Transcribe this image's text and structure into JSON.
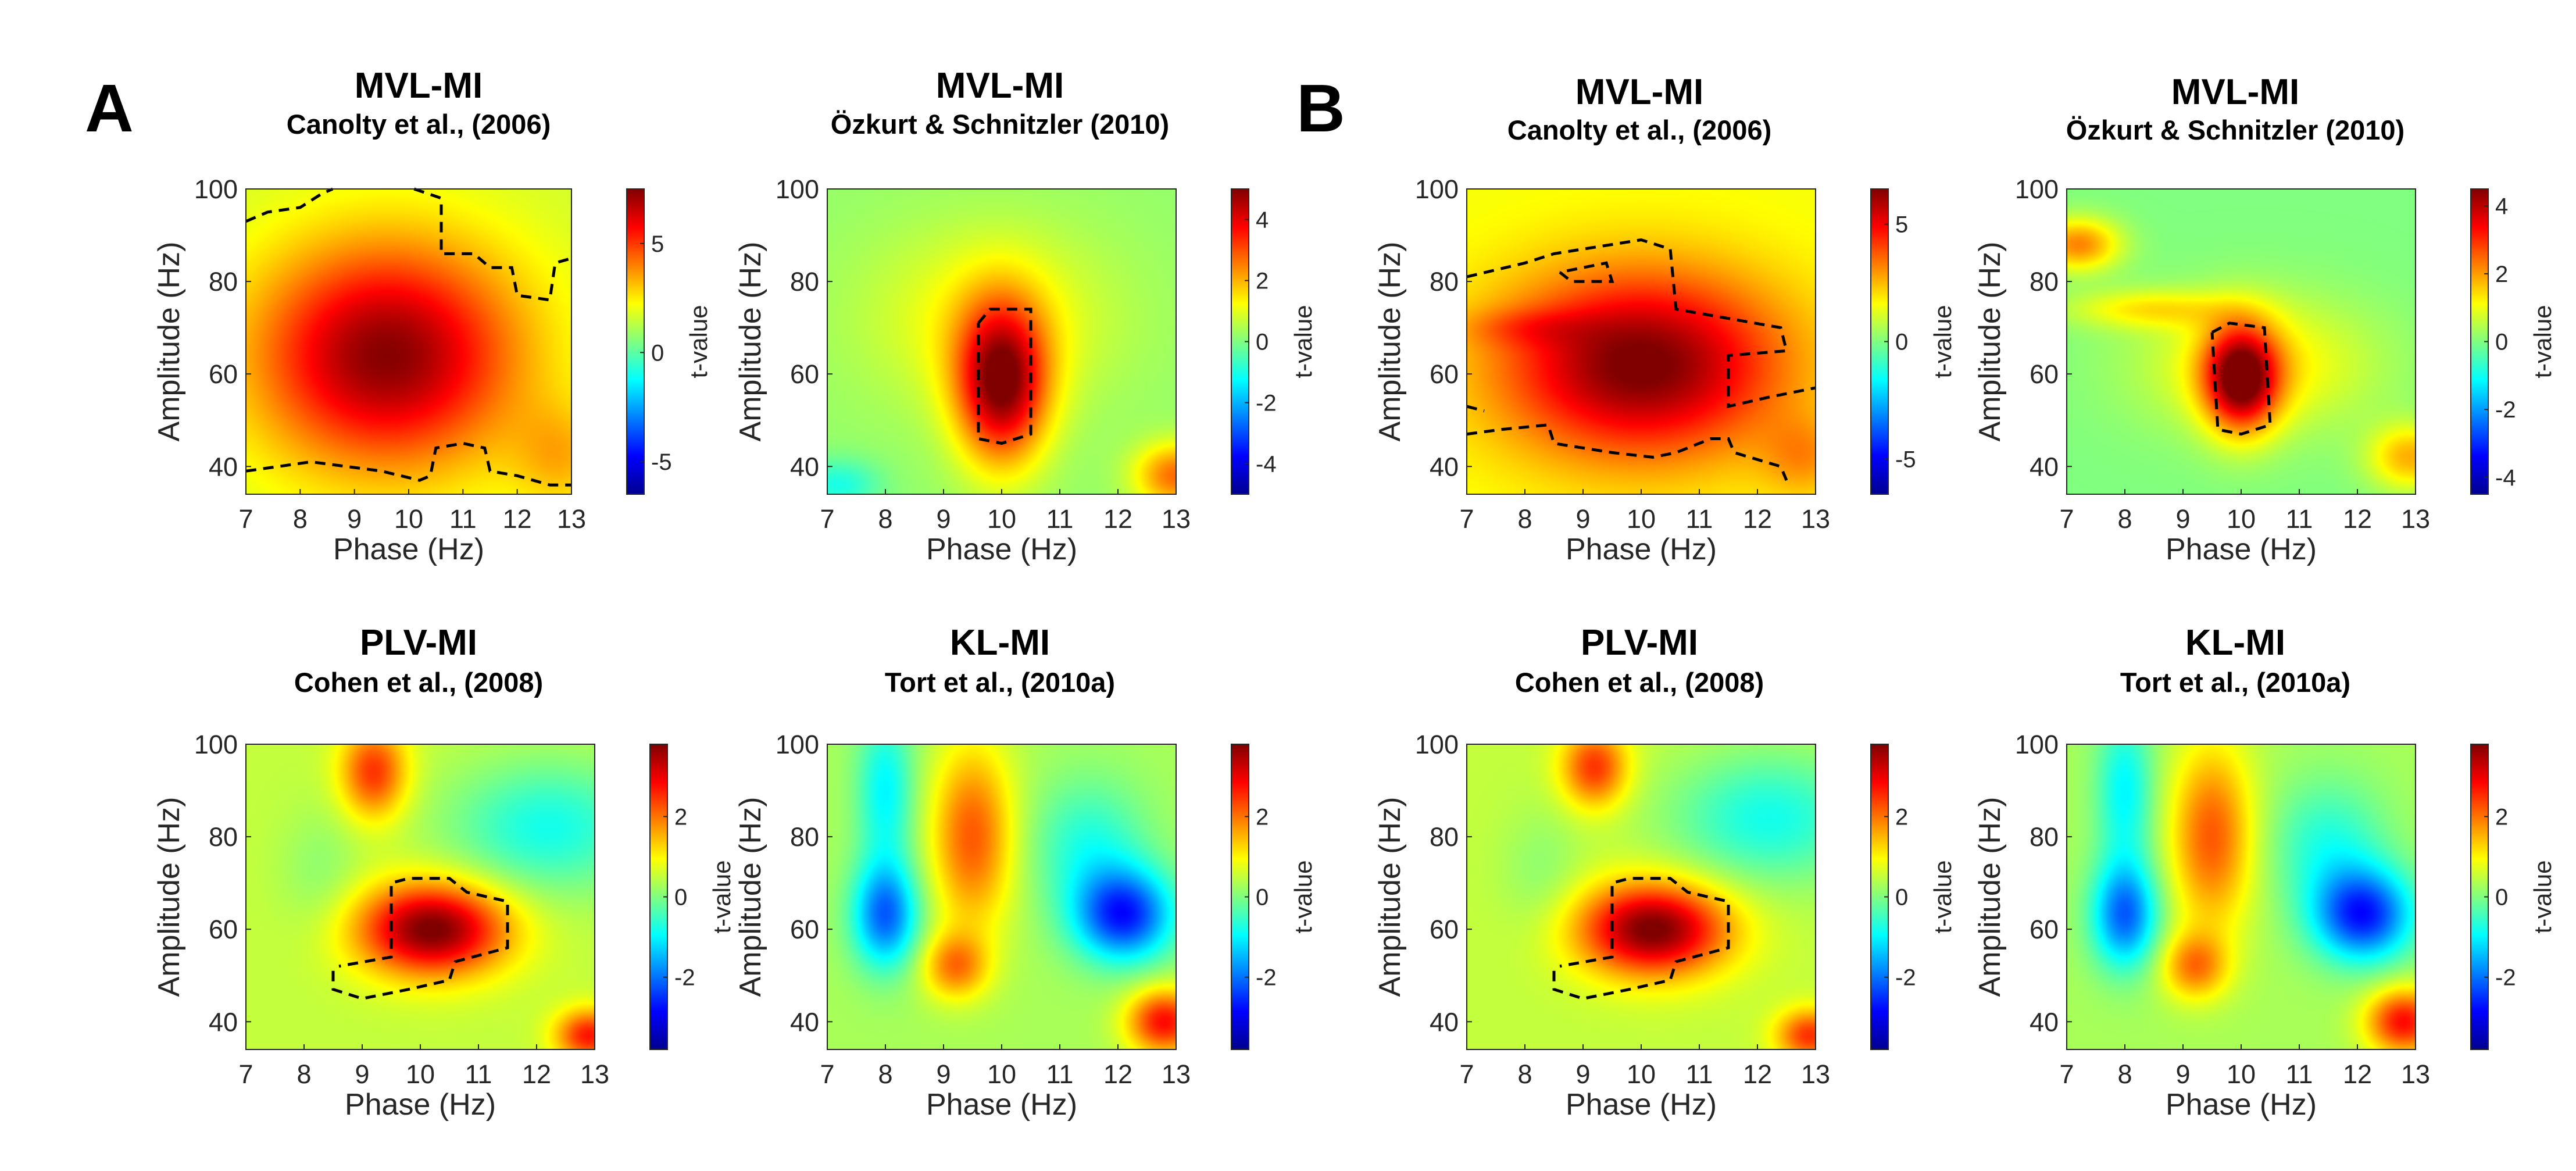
{
  "figure": {
    "panels": [
      {
        "letter": "A"
      },
      {
        "letter": "B"
      }
    ]
  },
  "colors": {
    "colormap": [
      "#00008f",
      "#0000ff",
      "#0080ff",
      "#00ffff",
      "#80ff80",
      "#ffff00",
      "#ff8000",
      "#ff0000",
      "#800000"
    ],
    "significance_contour": "#000000"
  },
  "chart_data": [
    {
      "type": "heatmap",
      "panel": "A",
      "title": "MVL-MI",
      "subtitle": "Canolty et al., (2006)",
      "xlabel": "Phase (Hz)",
      "ylabel": "Amplitude (Hz)",
      "xlim": [
        7,
        13
      ],
      "ylim": [
        34,
        100
      ],
      "x_ticks": [
        7,
        8,
        9,
        10,
        11,
        12,
        13
      ],
      "y_ticks": [
        40,
        60,
        80,
        100
      ],
      "colorbar": {
        "label": "t-value",
        "range": [
          -6.5,
          7.5
        ],
        "ticks": [
          -5,
          0,
          5
        ]
      },
      "background": 1.6,
      "blobs": [
        {
          "x": 9.6,
          "y": 64,
          "sx": 1.7,
          "sy": 17,
          "amp": 5.8
        },
        {
          "x": 12.8,
          "y": 42,
          "sx": 0.6,
          "sy": 8,
          "amp": 1.5
        }
      ],
      "contours": [
        [
          [
            7,
            93
          ],
          [
            7.4,
            95
          ],
          [
            8,
            96
          ],
          [
            8.4,
            99
          ],
          [
            8.6,
            100
          ]
        ],
        [
          [
            10.1,
            100
          ],
          [
            10.6,
            98
          ],
          [
            10.6,
            86
          ],
          [
            11.2,
            86
          ],
          [
            11.5,
            83
          ],
          [
            11.9,
            83
          ],
          [
            12,
            77
          ],
          [
            12.6,
            76
          ],
          [
            12.7,
            84
          ],
          [
            13,
            85
          ]
        ],
        [
          [
            7,
            39
          ],
          [
            7.6,
            40
          ],
          [
            8.2,
            41
          ],
          [
            9.5,
            39
          ],
          [
            10.2,
            37
          ],
          [
            10.4,
            38
          ],
          [
            10.5,
            44
          ],
          [
            11,
            45
          ],
          [
            11.4,
            44
          ],
          [
            11.5,
            39
          ],
          [
            12,
            38
          ],
          [
            12.6,
            36
          ],
          [
            13,
            36
          ]
        ]
      ]
    },
    {
      "type": "heatmap",
      "panel": "A",
      "title": "MVL-MI",
      "subtitle": "Özkurt & Schnitzler (2010)",
      "xlabel": "Phase (Hz)",
      "ylabel": "Amplitude (Hz)",
      "xlim": [
        7,
        13
      ],
      "ylim": [
        34,
        100
      ],
      "x_ticks": [
        7,
        8,
        9,
        10,
        11,
        12,
        13
      ],
      "y_ticks": [
        40,
        60,
        80,
        100
      ],
      "colorbar": {
        "label": "t-value",
        "range": [
          -5,
          5
        ],
        "ticks": [
          -4,
          -2,
          0,
          2,
          4
        ]
      },
      "background": 0.2,
      "blobs": [
        {
          "x": 10,
          "y": 58,
          "sx": 0.55,
          "sy": 12,
          "amp": 4.6
        },
        {
          "x": 9.8,
          "y": 72,
          "sx": 1.5,
          "sy": 14,
          "amp": 1.1
        },
        {
          "x": 13,
          "y": 38,
          "sx": 0.5,
          "sy": 5,
          "amp": 2.5
        },
        {
          "x": 7.2,
          "y": 36,
          "sx": 0.5,
          "sy": 4,
          "amp": -1.2
        }
      ],
      "contours": [
        [
          [
            9.6,
            71
          ],
          [
            9.8,
            74
          ],
          [
            10.5,
            74
          ],
          [
            10.5,
            47
          ],
          [
            10,
            45
          ],
          [
            9.6,
            46
          ],
          [
            9.6,
            71
          ]
        ]
      ]
    },
    {
      "type": "heatmap",
      "panel": "B",
      "title": "MVL-MI",
      "subtitle": "Canolty et al., (2006)",
      "xlabel": "Phase (Hz)",
      "ylabel": "Amplitude (Hz)",
      "xlim": [
        7,
        13
      ],
      "ylim": [
        34,
        100
      ],
      "x_ticks": [
        7,
        8,
        9,
        10,
        11,
        12,
        13
      ],
      "y_ticks": [
        40,
        60,
        80,
        100
      ],
      "colorbar": {
        "label": "t-value",
        "range": [
          -6.5,
          6.5
        ],
        "ticks": [
          -5,
          0,
          5
        ]
      },
      "background": 1.5,
      "blobs": [
        {
          "x": 10,
          "y": 62,
          "sx": 1.7,
          "sy": 14,
          "amp": 5.2
        },
        {
          "x": 8,
          "y": 70,
          "sx": 0.8,
          "sy": 3,
          "amp": 1.0
        },
        {
          "x": 12.8,
          "y": 42,
          "sx": 0.5,
          "sy": 6,
          "amp": 1.3
        }
      ],
      "contours": [
        [
          [
            7,
            81
          ],
          [
            8,
            84
          ],
          [
            8.5,
            86
          ],
          [
            9,
            87
          ],
          [
            9.5,
            88
          ],
          [
            10,
            89
          ],
          [
            10.5,
            87
          ],
          [
            10.6,
            74
          ],
          [
            11.5,
            72
          ],
          [
            12.4,
            70
          ],
          [
            12.5,
            65
          ],
          [
            11.5,
            64
          ],
          [
            11.5,
            53
          ],
          [
            12.2,
            55
          ],
          [
            13,
            57
          ]
        ],
        [
          [
            8.6,
            82
          ],
          [
            8.8,
            80
          ],
          [
            9.5,
            80
          ],
          [
            9.4,
            84
          ],
          [
            8.6,
            82
          ]
        ],
        [
          [
            7,
            47
          ],
          [
            7.6,
            48
          ],
          [
            8.4,
            49
          ],
          [
            8.5,
            45
          ],
          [
            9.5,
            43
          ],
          [
            10.2,
            42
          ],
          [
            10.6,
            43
          ],
          [
            11.2,
            46
          ],
          [
            11.5,
            46
          ],
          [
            11.6,
            43
          ],
          [
            12.4,
            40
          ],
          [
            12.5,
            37
          ]
        ],
        [
          [
            7,
            53
          ],
          [
            7.3,
            52
          ]
        ]
      ]
    },
    {
      "type": "heatmap",
      "panel": "B",
      "title": "MVL-MI",
      "subtitle": "Özkurt & Schnitzler (2010)",
      "xlabel": "Phase (Hz)",
      "ylabel": "Amplitude (Hz)",
      "xlim": [
        7,
        13
      ],
      "ylim": [
        34,
        100
      ],
      "x_ticks": [
        7,
        8,
        9,
        10,
        11,
        12,
        13
      ],
      "y_ticks": [
        40,
        60,
        80,
        100
      ],
      "colorbar": {
        "label": "t-value",
        "range": [
          -4.5,
          4.5
        ],
        "ticks": [
          -4,
          -2,
          0,
          2,
          4
        ]
      },
      "background": 0.0,
      "blobs": [
        {
          "x": 10,
          "y": 59,
          "sx": 0.45,
          "sy": 8,
          "amp": 4.2
        },
        {
          "x": 10.3,
          "y": 62,
          "sx": 1.4,
          "sy": 10,
          "amp": 1.3
        },
        {
          "x": 7.2,
          "y": 88,
          "sx": 0.5,
          "sy": 4,
          "amp": 2.2
        },
        {
          "x": 8.4,
          "y": 74,
          "sx": 1.0,
          "sy": 3,
          "amp": 1.2
        },
        {
          "x": 12.9,
          "y": 42,
          "sx": 0.5,
          "sy": 5,
          "amp": 1.8
        }
      ],
      "contours": [
        [
          [
            9.5,
            69
          ],
          [
            9.8,
            71
          ],
          [
            10.4,
            70
          ],
          [
            10.5,
            49
          ],
          [
            10,
            47
          ],
          [
            9.6,
            48
          ],
          [
            9.5,
            69
          ]
        ]
      ]
    },
    {
      "type": "heatmap",
      "panel": "A",
      "title": "PLV-MI",
      "subtitle": "Cohen et al., (2008)",
      "xlabel": "Phase (Hz)",
      "ylabel": "Amplitude (Hz)",
      "xlim": [
        7,
        13
      ],
      "ylim": [
        34,
        100
      ],
      "x_ticks": [
        7,
        8,
        9,
        10,
        11,
        12,
        13
      ],
      "y_ticks": [
        40,
        60,
        80,
        100
      ],
      "colorbar": {
        "label": "t-value",
        "range": [
          -3.8,
          3.8
        ],
        "ticks": [
          -2,
          0,
          2
        ]
      },
      "background": 0.5,
      "blobs": [
        {
          "x": 10.2,
          "y": 60,
          "sx": 0.9,
          "sy": 7,
          "amp": 3.4
        },
        {
          "x": 9.2,
          "y": 94,
          "sx": 0.4,
          "sy": 7,
          "amp": 2.0
        },
        {
          "x": 12.2,
          "y": 82,
          "sx": 1.2,
          "sy": 10,
          "amp": -1.3
        },
        {
          "x": 12.9,
          "y": 37,
          "sx": 0.4,
          "sy": 4,
          "amp": 2.2
        },
        {
          "x": 8.3,
          "y": 72,
          "sx": 0.5,
          "sy": 10,
          "amp": -0.4
        }
      ],
      "contours": [
        [
          [
            8.5,
            51
          ],
          [
            8.5,
            47
          ],
          [
            9,
            45
          ],
          [
            9.8,
            47
          ],
          [
            10.5,
            49
          ],
          [
            10.6,
            53
          ],
          [
            11.5,
            56
          ],
          [
            11.5,
            66
          ],
          [
            10.8,
            68
          ],
          [
            10.5,
            71
          ],
          [
            9.8,
            71
          ],
          [
            9.5,
            70
          ],
          [
            9.5,
            54
          ],
          [
            8.6,
            52
          ]
        ]
      ]
    },
    {
      "type": "heatmap",
      "panel": "A",
      "title": "KL-MI",
      "subtitle": "Tort et al., (2010a)",
      "xlabel": "Phase (Hz)",
      "ylabel": "Amplitude (Hz)",
      "xlim": [
        7,
        13
      ],
      "ylim": [
        34,
        100
      ],
      "x_ticks": [
        7,
        8,
        9,
        10,
        11,
        12,
        13
      ],
      "y_ticks": [
        40,
        60,
        80,
        100
      ],
      "colorbar": {
        "label": "t-value",
        "range": [
          -3.8,
          3.8
        ],
        "ticks": [
          -2,
          0,
          2
        ]
      },
      "background": 0.3,
      "blobs": [
        {
          "x": 9.5,
          "y": 80,
          "sx": 0.5,
          "sy": 14,
          "amp": 1.9
        },
        {
          "x": 9.2,
          "y": 52,
          "sx": 0.4,
          "sy": 5,
          "amp": 1.6
        },
        {
          "x": 8,
          "y": 63,
          "sx": 0.4,
          "sy": 8,
          "amp": -2.4
        },
        {
          "x": 8,
          "y": 90,
          "sx": 0.35,
          "sy": 12,
          "amp": -1.3
        },
        {
          "x": 12.1,
          "y": 63,
          "sx": 0.6,
          "sy": 7,
          "amp": -2.9
        },
        {
          "x": 11.5,
          "y": 78,
          "sx": 0.7,
          "sy": 10,
          "amp": -1.0
        },
        {
          "x": 12.8,
          "y": 40,
          "sx": 0.45,
          "sy": 5,
          "amp": 2.5
        }
      ],
      "contours": []
    },
    {
      "type": "heatmap",
      "panel": "B",
      "title": "PLV-MI",
      "subtitle": "Cohen et al., (2008)",
      "xlabel": "Phase (Hz)",
      "ylabel": "Amplitude (Hz)",
      "xlim": [
        7,
        13
      ],
      "ylim": [
        34,
        100
      ],
      "x_ticks": [
        7,
        8,
        9,
        10,
        11,
        12,
        13
      ],
      "y_ticks": [
        40,
        60,
        80,
        100
      ],
      "colorbar": {
        "label": "t-value",
        "range": [
          -3.8,
          3.8
        ],
        "ticks": [
          -2,
          0,
          2
        ]
      },
      "background": 0.5,
      "blobs": [
        {
          "x": 10.2,
          "y": 60,
          "sx": 0.9,
          "sy": 7,
          "amp": 3.4
        },
        {
          "x": 9.2,
          "y": 95,
          "sx": 0.4,
          "sy": 6,
          "amp": 2.0
        },
        {
          "x": 12.2,
          "y": 84,
          "sx": 1.2,
          "sy": 10,
          "amp": -1.3
        },
        {
          "x": 12.9,
          "y": 37,
          "sx": 0.4,
          "sy": 4,
          "amp": 2.0
        },
        {
          "x": 8.3,
          "y": 72,
          "sx": 0.5,
          "sy": 10,
          "amp": -0.4
        }
      ],
      "contours": [
        [
          [
            8.5,
            51
          ],
          [
            8.5,
            47
          ],
          [
            9,
            45
          ],
          [
            9.8,
            47
          ],
          [
            10.5,
            49
          ],
          [
            10.6,
            53
          ],
          [
            11.5,
            56
          ],
          [
            11.5,
            66
          ],
          [
            10.8,
            68
          ],
          [
            10.5,
            71
          ],
          [
            9.8,
            71
          ],
          [
            9.5,
            70
          ],
          [
            9.5,
            54
          ],
          [
            8.6,
            52
          ]
        ]
      ]
    },
    {
      "type": "heatmap",
      "panel": "B",
      "title": "KL-MI",
      "subtitle": "Tort et al., (2010a)",
      "xlabel": "Phase (Hz)",
      "ylabel": "Amplitude (Hz)",
      "xlim": [
        7,
        13
      ],
      "ylim": [
        34,
        100
      ],
      "x_ticks": [
        7,
        8,
        9,
        10,
        11,
        12,
        13
      ],
      "y_ticks": [
        40,
        60,
        80,
        100
      ],
      "colorbar": {
        "label": "t-value",
        "range": [
          -3.8,
          3.8
        ],
        "ticks": [
          -2,
          0,
          2
        ]
      },
      "background": 0.3,
      "blobs": [
        {
          "x": 9.5,
          "y": 80,
          "sx": 0.5,
          "sy": 14,
          "amp": 1.9
        },
        {
          "x": 9.2,
          "y": 52,
          "sx": 0.4,
          "sy": 5,
          "amp": 1.6
        },
        {
          "x": 8,
          "y": 63,
          "sx": 0.4,
          "sy": 8,
          "amp": -2.4
        },
        {
          "x": 8,
          "y": 90,
          "sx": 0.35,
          "sy": 12,
          "amp": -1.3
        },
        {
          "x": 12.1,
          "y": 63,
          "sx": 0.6,
          "sy": 7,
          "amp": -2.9
        },
        {
          "x": 11.5,
          "y": 78,
          "sx": 0.7,
          "sy": 10,
          "amp": -1.0
        },
        {
          "x": 12.8,
          "y": 40,
          "sx": 0.45,
          "sy": 5,
          "amp": 2.5
        }
      ],
      "contours": []
    }
  ]
}
